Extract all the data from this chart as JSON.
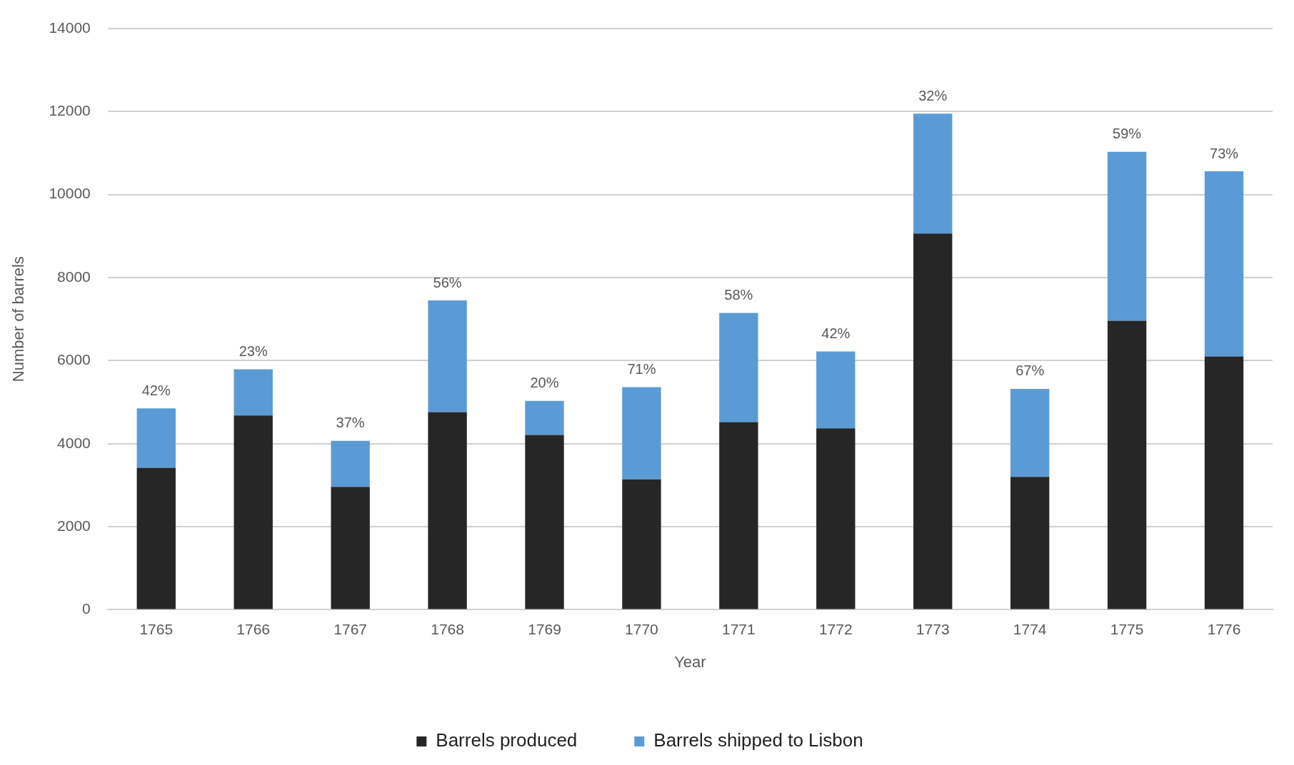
{
  "chart_data": {
    "type": "bar",
    "stacked": true,
    "xlabel": "Year",
    "ylabel": "Number of barrels",
    "categories": [
      "1765",
      "1766",
      "1767",
      "1768",
      "1769",
      "1770",
      "1771",
      "1772",
      "1773",
      "1774",
      "1775",
      "1776"
    ],
    "series": [
      {
        "name": "Barrels produced",
        "color": "#262626",
        "values": [
          3420,
          4680,
          2960,
          4760,
          4210,
          3140,
          4520,
          4370,
          9060,
          3200,
          6960,
          6100
        ]
      },
      {
        "name": "Barrels shipped to Lisbon",
        "color": "#5b9bd5",
        "values": [
          1430,
          1110,
          1110,
          2690,
          820,
          2220,
          2630,
          1850,
          2890,
          2120,
          4070,
          4460
        ]
      }
    ],
    "ylim": [
      0,
      14000
    ],
    "yticks": [
      0,
      2000,
      4000,
      6000,
      8000,
      10000,
      12000,
      14000
    ],
    "grid": "y",
    "legend": "bottom",
    "annotations": [
      {
        "text": "42%",
        "x": "1765",
        "y": 4850
      },
      {
        "text": "23%",
        "x": "1766",
        "y": 5790
      },
      {
        "text": "37%",
        "x": "1767",
        "y": 4070
      },
      {
        "text": "56%",
        "x": "1768",
        "y": 7450
      },
      {
        "text": "20%",
        "x": "1769",
        "y": 5030
      },
      {
        "text": "71%",
        "x": "1770",
        "y": 5360
      },
      {
        "text": "58%",
        "x": "1771",
        "y": 7150
      },
      {
        "text": "42%",
        "x": "1772",
        "y": 6220
      },
      {
        "text": "32%",
        "x": "1773",
        "y": 11950
      },
      {
        "text": "67%",
        "x": "1774",
        "y": 5320
      },
      {
        "text": "59%",
        "x": "1775",
        "y": 11030
      },
      {
        "text": "73%",
        "x": "1776",
        "y": 10560
      }
    ]
  }
}
